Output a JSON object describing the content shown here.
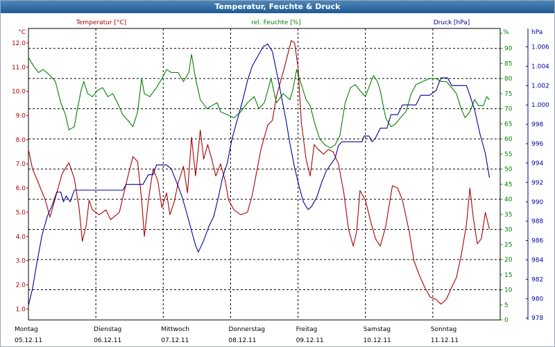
{
  "window": {
    "title": "Temperatur, Feuchte & Druck"
  },
  "colors": {
    "temperature": "#aa0000",
    "humidity": "#008000",
    "pressure": "#000099",
    "grid": "#000000",
    "text": "#000000"
  },
  "chart_data": {
    "type": "line",
    "grid": true,
    "axes": {
      "temperature": {
        "unit": "°C",
        "label": "Temperatur [°C]",
        "ylim": [
          0.55,
          12.6
        ],
        "ticks": [
          1.0,
          2.0,
          3.0,
          4.0,
          5.0,
          6.0,
          7.0,
          8.0,
          9.0,
          10.0,
          11.0,
          12.0
        ]
      },
      "humidity": {
        "unit": "%",
        "label": "rel. Feuchte [%]",
        "ylim": [
          0,
          96.6
        ],
        "ticks": [
          0,
          5,
          10,
          15,
          20,
          25,
          30,
          35,
          40,
          45,
          50,
          55,
          60,
          65,
          70,
          75,
          80,
          85,
          90,
          95
        ]
      },
      "pressure": {
        "unit": "hPa",
        "label": "Druck [hPa]",
        "ylim": [
          977.8,
          1007.9
        ],
        "ticks": [
          978,
          980,
          982,
          984,
          986,
          988,
          990,
          992,
          994,
          996,
          998,
          1000,
          1002,
          1004,
          1006
        ]
      }
    },
    "x_range": [
      0,
      7
    ],
    "days": [
      {
        "name": "Montag",
        "date": "05.12.11"
      },
      {
        "name": "Dienstag",
        "date": "06.12.11"
      },
      {
        "name": "Mittwoch",
        "date": "07.12.11"
      },
      {
        "name": "Donnerstag",
        "date": "08.12.11"
      },
      {
        "name": "Freitag",
        "date": "09.12.11"
      },
      {
        "name": "Samstag",
        "date": "10.12.11"
      },
      {
        "name": "Sonntag",
        "date": "11.12.11"
      }
    ],
    "series": [
      {
        "name": "Temperatur [°C]",
        "axis": "temperature",
        "color": "#aa0000",
        "points": [
          [
            0,
            7.6
          ],
          [
            0.06,
            6.8
          ],
          [
            0.15,
            6.2
          ],
          [
            0.25,
            5.5
          ],
          [
            0.32,
            4.8
          ],
          [
            0.42,
            5.8
          ],
          [
            0.5,
            6.6
          ],
          [
            0.6,
            7.05
          ],
          [
            0.68,
            6.4
          ],
          [
            0.75,
            5.2
          ],
          [
            0.8,
            3.8
          ],
          [
            0.86,
            4.5
          ],
          [
            0.9,
            5.5
          ],
          [
            0.95,
            5.1
          ],
          [
            1.05,
            4.9
          ],
          [
            1.15,
            5.1
          ],
          [
            1.22,
            4.7
          ],
          [
            1.35,
            5.0
          ],
          [
            1.45,
            6.2
          ],
          [
            1.55,
            7.3
          ],
          [
            1.62,
            7.1
          ],
          [
            1.68,
            5.5
          ],
          [
            1.72,
            4.0
          ],
          [
            1.78,
            5.5
          ],
          [
            1.85,
            6.8
          ],
          [
            1.92,
            6.3
          ],
          [
            1.98,
            5.2
          ],
          [
            2.05,
            5.8
          ],
          [
            2.1,
            4.9
          ],
          [
            2.16,
            5.4
          ],
          [
            2.22,
            6.2
          ],
          [
            2.3,
            6.9
          ],
          [
            2.36,
            5.8
          ],
          [
            2.42,
            8.1
          ],
          [
            2.48,
            6.5
          ],
          [
            2.55,
            8.4
          ],
          [
            2.6,
            7.2
          ],
          [
            2.66,
            7.8
          ],
          [
            2.72,
            7.2
          ],
          [
            2.78,
            6.5
          ],
          [
            2.85,
            7.0
          ],
          [
            2.92,
            6.3
          ],
          [
            2.97,
            5.5
          ],
          [
            3.05,
            5.1
          ],
          [
            3.15,
            4.9
          ],
          [
            3.25,
            5.0
          ],
          [
            3.32,
            5.7
          ],
          [
            3.45,
            7.6
          ],
          [
            3.55,
            8.6
          ],
          [
            3.62,
            8.8
          ],
          [
            3.68,
            9.8
          ],
          [
            3.8,
            11.0
          ],
          [
            3.9,
            12.1
          ],
          [
            3.95,
            12.0
          ],
          [
            4.0,
            11.0
          ],
          [
            4.05,
            8.7
          ],
          [
            4.12,
            7.2
          ],
          [
            4.18,
            6.5
          ],
          [
            4.24,
            7.8
          ],
          [
            4.3,
            7.6
          ],
          [
            4.38,
            7.4
          ],
          [
            4.45,
            7.6
          ],
          [
            4.52,
            7.5
          ],
          [
            4.6,
            7.0
          ],
          [
            4.68,
            5.8
          ],
          [
            4.75,
            4.3
          ],
          [
            4.82,
            3.6
          ],
          [
            4.87,
            4.2
          ],
          [
            4.92,
            5.9
          ],
          [
            5.0,
            5.5
          ],
          [
            5.08,
            4.6
          ],
          [
            5.15,
            3.9
          ],
          [
            5.22,
            3.6
          ],
          [
            5.3,
            4.4
          ],
          [
            5.4,
            6.1
          ],
          [
            5.48,
            6.0
          ],
          [
            5.55,
            5.5
          ],
          [
            5.65,
            4.2
          ],
          [
            5.72,
            3.0
          ],
          [
            5.8,
            2.4
          ],
          [
            5.88,
            1.9
          ],
          [
            5.96,
            1.5
          ],
          [
            6.05,
            1.4
          ],
          [
            6.12,
            1.2
          ],
          [
            6.2,
            1.4
          ],
          [
            6.28,
            1.9
          ],
          [
            6.35,
            2.3
          ],
          [
            6.42,
            3.2
          ],
          [
            6.5,
            4.5
          ],
          [
            6.55,
            6.0
          ],
          [
            6.6,
            4.8
          ],
          [
            6.66,
            3.7
          ],
          [
            6.72,
            3.9
          ],
          [
            6.78,
            5.0
          ],
          [
            6.84,
            4.3
          ]
        ]
      },
      {
        "name": "rel. Feuchte [%]",
        "axis": "humidity",
        "color": "#008000",
        "points": [
          [
            0,
            87
          ],
          [
            0.08,
            84
          ],
          [
            0.15,
            82
          ],
          [
            0.22,
            83
          ],
          [
            0.32,
            81
          ],
          [
            0.4,
            79
          ],
          [
            0.48,
            72
          ],
          [
            0.55,
            68
          ],
          [
            0.6,
            63
          ],
          [
            0.68,
            64
          ],
          [
            0.72,
            69
          ],
          [
            0.78,
            76
          ],
          [
            0.82,
            79
          ],
          [
            0.88,
            75
          ],
          [
            0.95,
            74
          ],
          [
            1.02,
            76
          ],
          [
            1.1,
            77
          ],
          [
            1.18,
            74
          ],
          [
            1.25,
            75
          ],
          [
            1.32,
            72
          ],
          [
            1.4,
            68
          ],
          [
            1.48,
            66
          ],
          [
            1.55,
            64
          ],
          [
            1.62,
            69
          ],
          [
            1.68,
            80
          ],
          [
            1.72,
            75
          ],
          [
            1.8,
            74
          ],
          [
            1.9,
            77
          ],
          [
            1.98,
            80
          ],
          [
            2.05,
            83
          ],
          [
            2.12,
            82
          ],
          [
            2.22,
            82
          ],
          [
            2.3,
            79
          ],
          [
            2.38,
            82
          ],
          [
            2.42,
            88
          ],
          [
            2.48,
            80
          ],
          [
            2.55,
            73
          ],
          [
            2.65,
            70
          ],
          [
            2.72,
            71
          ],
          [
            2.8,
            72
          ],
          [
            2.85,
            69
          ],
          [
            2.95,
            68
          ],
          [
            3.05,
            67
          ],
          [
            3.15,
            69
          ],
          [
            3.25,
            72
          ],
          [
            3.35,
            74
          ],
          [
            3.42,
            70
          ],
          [
            3.5,
            72
          ],
          [
            3.6,
            80
          ],
          [
            3.68,
            72
          ],
          [
            3.78,
            75
          ],
          [
            3.88,
            73
          ],
          [
            3.92,
            76
          ],
          [
            3.98,
            83
          ],
          [
            4.05,
            78
          ],
          [
            4.12,
            73
          ],
          [
            4.18,
            71
          ],
          [
            4.25,
            65
          ],
          [
            4.32,
            60
          ],
          [
            4.4,
            58
          ],
          [
            4.48,
            57
          ],
          [
            4.55,
            58
          ],
          [
            4.62,
            61
          ],
          [
            4.7,
            72
          ],
          [
            4.78,
            77
          ],
          [
            4.85,
            78
          ],
          [
            4.92,
            76
          ],
          [
            5.0,
            74
          ],
          [
            5.05,
            77
          ],
          [
            5.12,
            81
          ],
          [
            5.18,
            79
          ],
          [
            5.22,
            76
          ],
          [
            5.3,
            67
          ],
          [
            5.38,
            64
          ],
          [
            5.45,
            65
          ],
          [
            5.52,
            67
          ],
          [
            5.6,
            69
          ],
          [
            5.68,
            75
          ],
          [
            5.75,
            78
          ],
          [
            5.85,
            79
          ],
          [
            5.95,
            80
          ],
          [
            6.05,
            80
          ],
          [
            6.12,
            79
          ],
          [
            6.2,
            79
          ],
          [
            6.28,
            77
          ],
          [
            6.35,
            75
          ],
          [
            6.42,
            70
          ],
          [
            6.48,
            67
          ],
          [
            6.55,
            69
          ],
          [
            6.62,
            73
          ],
          [
            6.68,
            71
          ],
          [
            6.75,
            71
          ],
          [
            6.8,
            74
          ],
          [
            6.84,
            73
          ]
        ]
      },
      {
        "name": "Druck [hPa]",
        "axis": "pressure",
        "color": "#000099",
        "points": [
          [
            0,
            979.3
          ],
          [
            0.06,
            981.0
          ],
          [
            0.12,
            983.5
          ],
          [
            0.2,
            986.5
          ],
          [
            0.28,
            988.5
          ],
          [
            0.35,
            989.6
          ],
          [
            0.42,
            991.0
          ],
          [
            0.48,
            991.0
          ],
          [
            0.52,
            990.0
          ],
          [
            0.56,
            990.6
          ],
          [
            0.62,
            990.0
          ],
          [
            0.68,
            991.2
          ],
          [
            0.8,
            991.2
          ],
          [
            1.0,
            991.2
          ],
          [
            1.2,
            991.2
          ],
          [
            1.4,
            991.2
          ],
          [
            1.45,
            991.8
          ],
          [
            1.6,
            991.8
          ],
          [
            1.7,
            991.8
          ],
          [
            1.78,
            992.8
          ],
          [
            1.85,
            992.8
          ],
          [
            1.9,
            993.8
          ],
          [
            2.05,
            993.8
          ],
          [
            2.12,
            993.4
          ],
          [
            2.2,
            992.0
          ],
          [
            2.28,
            990.5
          ],
          [
            2.35,
            988.8
          ],
          [
            2.42,
            987.0
          ],
          [
            2.48,
            985.5
          ],
          [
            2.52,
            984.8
          ],
          [
            2.6,
            986.0
          ],
          [
            2.68,
            987.5
          ],
          [
            2.75,
            988.5
          ],
          [
            2.82,
            990.5
          ],
          [
            2.88,
            992.5
          ],
          [
            2.95,
            994.0
          ],
          [
            3.02,
            996.5
          ],
          [
            3.1,
            998.5
          ],
          [
            3.18,
            1000.5
          ],
          [
            3.25,
            1002.5
          ],
          [
            3.32,
            1004.0
          ],
          [
            3.4,
            1005.0
          ],
          [
            3.48,
            1006.0
          ],
          [
            3.55,
            1006.3
          ],
          [
            3.62,
            1005.5
          ],
          [
            3.68,
            1003.5
          ],
          [
            3.75,
            1001.0
          ],
          [
            3.82,
            998.5
          ],
          [
            3.88,
            996.0
          ],
          [
            3.95,
            993.5
          ],
          [
            4.02,
            991.5
          ],
          [
            4.08,
            990.0
          ],
          [
            4.15,
            989.2
          ],
          [
            4.2,
            989.5
          ],
          [
            4.28,
            990.5
          ],
          [
            4.35,
            992.0
          ],
          [
            4.42,
            993.2
          ],
          [
            4.48,
            993.8
          ],
          [
            4.55,
            994.5
          ],
          [
            4.6,
            995.8
          ],
          [
            4.65,
            996.2
          ],
          [
            4.8,
            996.2
          ],
          [
            4.95,
            996.2
          ],
          [
            4.98,
            996.8
          ],
          [
            5.05,
            996.8
          ],
          [
            5.1,
            996.2
          ],
          [
            5.15,
            996.6
          ],
          [
            5.22,
            997.6
          ],
          [
            5.32,
            997.6
          ],
          [
            5.38,
            999.0
          ],
          [
            5.48,
            999.0
          ],
          [
            5.55,
            1000.0
          ],
          [
            5.75,
            1000.0
          ],
          [
            5.82,
            1001.0
          ],
          [
            5.95,
            1001.0
          ],
          [
            6.05,
            1001.5
          ],
          [
            6.12,
            1002.8
          ],
          [
            6.22,
            1002.8
          ],
          [
            6.28,
            1002.0
          ],
          [
            6.5,
            1002.0
          ],
          [
            6.55,
            1001.0
          ],
          [
            6.62,
            999.5
          ],
          [
            6.7,
            997.0
          ],
          [
            6.78,
            995.0
          ],
          [
            6.84,
            992.5
          ]
        ]
      }
    ]
  }
}
